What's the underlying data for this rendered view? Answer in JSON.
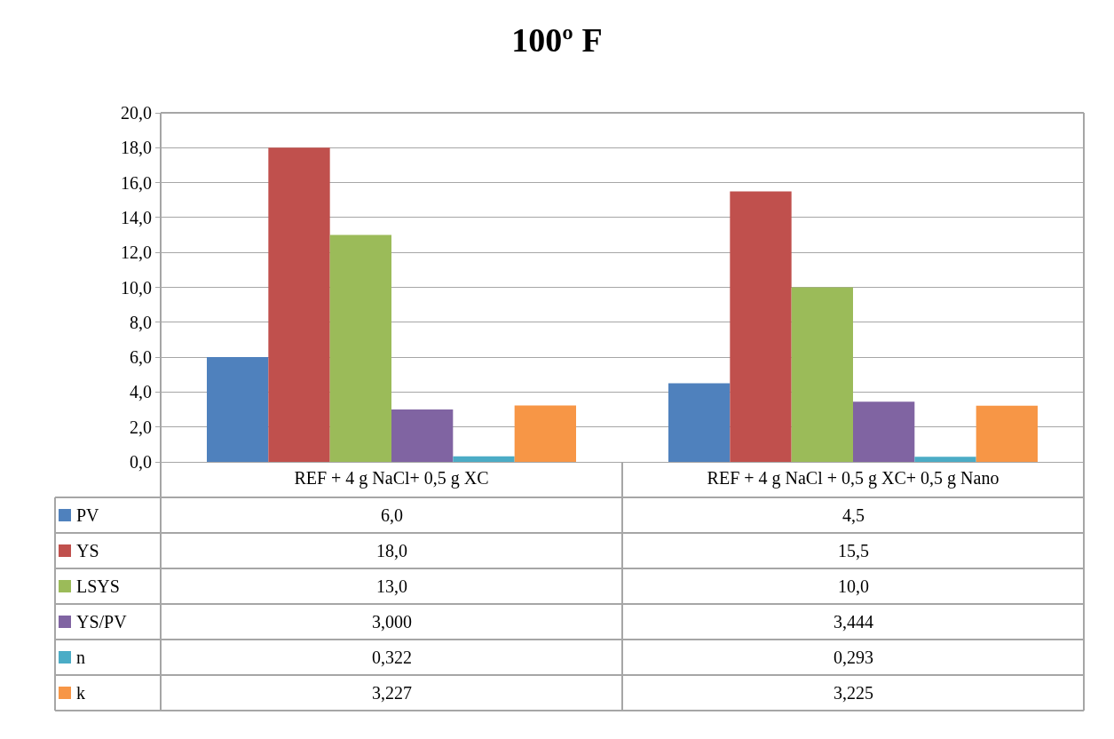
{
  "chart_data": {
    "type": "bar",
    "title": "100º F",
    "categories": [
      "REF + 4 g NaCl+ 0,5 g XC",
      "REF + 4 g NaCl + 0,5 g XC+ 0,5 g Nano"
    ],
    "series": [
      {
        "name": "PV",
        "color": "#4f81bd",
        "values": [
          6.0,
          4.5
        ],
        "value_labels": [
          "6,0",
          "4,5"
        ]
      },
      {
        "name": "YS",
        "color": "#c0504d",
        "values": [
          18.0,
          15.5
        ],
        "value_labels": [
          "18,0",
          "15,5"
        ]
      },
      {
        "name": "LSYS",
        "color": "#9bbb59",
        "values": [
          13.0,
          10.0
        ],
        "value_labels": [
          "13,0",
          "10,0"
        ]
      },
      {
        "name": "YS/PV",
        "color": "#8064a2",
        "values": [
          3.0,
          3.444
        ],
        "value_labels": [
          "3,000",
          "3,444"
        ]
      },
      {
        "name": "n",
        "color": "#4bacc6",
        "values": [
          0.322,
          0.293
        ],
        "value_labels": [
          "0,322",
          "0,293"
        ]
      },
      {
        "name": "k",
        "color": "#f79646",
        "values": [
          3.227,
          3.225
        ],
        "value_labels": [
          "3,227",
          "3,225"
        ]
      }
    ],
    "ylim": [
      0,
      20
    ],
    "yticks": [
      {
        "value": 0,
        "label": "0,0"
      },
      {
        "value": 2,
        "label": "2,0"
      },
      {
        "value": 4,
        "label": "4,0"
      },
      {
        "value": 6,
        "label": "6,0"
      },
      {
        "value": 8,
        "label": "8,0"
      },
      {
        "value": 10,
        "label": "10,0"
      },
      {
        "value": 12,
        "label": "12,0"
      },
      {
        "value": 14,
        "label": "14,0"
      },
      {
        "value": 16,
        "label": "16,0"
      },
      {
        "value": 18,
        "label": "18,0"
      },
      {
        "value": 20,
        "label": "20,0"
      }
    ],
    "grid": "y",
    "legend": "bottom"
  }
}
